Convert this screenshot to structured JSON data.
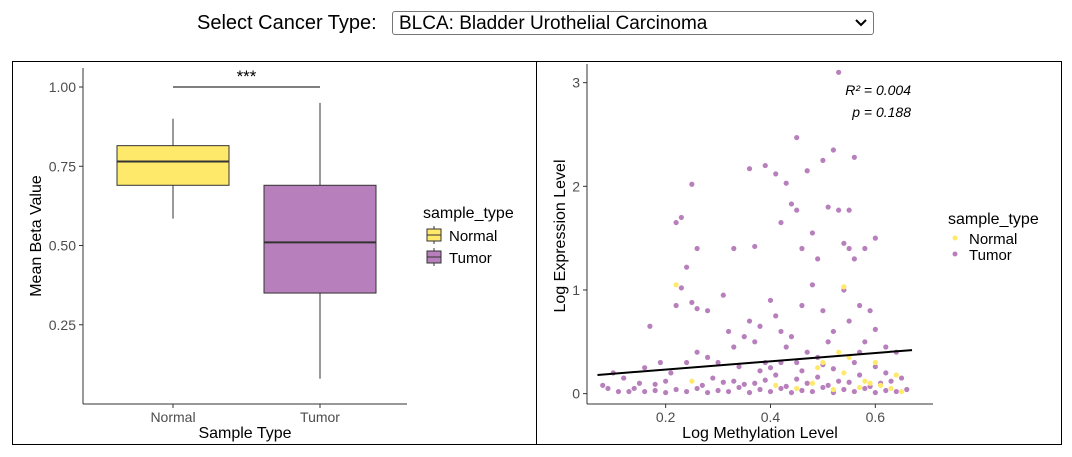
{
  "selector": {
    "label": "Select Cancer Type:",
    "value": "BLCA: Bladder Urothelial Carcinoma"
  },
  "colors": {
    "normal": "#ffe96b",
    "tumor": "#b87fbd",
    "box_outline": "#333333",
    "significance_line": "#000000"
  },
  "chart_data": [
    {
      "type": "box",
      "xlabel": "Sample Type",
      "ylabel": "Mean Beta Value",
      "categories": [
        "Normal",
        "Tumor"
      ],
      "ylim": [
        0.0,
        1.06
      ],
      "yticks": [
        0.25,
        0.5,
        0.75,
        1.0
      ],
      "ytick_labels": [
        "0.25",
        "0.50",
        "0.75",
        "1.00"
      ],
      "boxes": [
        {
          "name": "Normal",
          "min": 0.585,
          "q1": 0.69,
          "median": 0.765,
          "q3": 0.815,
          "max": 0.9
        },
        {
          "name": "Tumor",
          "min": 0.08,
          "q1": 0.35,
          "median": 0.51,
          "q3": 0.69,
          "max": 0.95
        }
      ],
      "significance": {
        "label": "***",
        "y": 1.0
      },
      "legend": {
        "title": "sample_type",
        "entries": [
          "Normal",
          "Tumor"
        ],
        "position": "right"
      }
    },
    {
      "type": "scatter",
      "xlabel": "Log Methylation Level",
      "ylabel": "Log Expression Level",
      "xlim": [
        0.05,
        0.71
      ],
      "ylim": [
        -0.1,
        3.18
      ],
      "xticks": [
        0.2,
        0.4,
        0.6
      ],
      "xtick_labels": [
        "0.2",
        "0.4",
        "0.6"
      ],
      "yticks": [
        0,
        1,
        2,
        3
      ],
      "ytick_labels": [
        "0",
        "1",
        "2",
        "3"
      ],
      "annotation": {
        "r2": "R² = 0.004",
        "p": "p = 0.188"
      },
      "regression": {
        "x": [
          0.07,
          0.67
        ],
        "y": [
          0.18,
          0.42
        ]
      },
      "legend": {
        "title": "sample_type",
        "entries": [
          "Normal",
          "Tumor"
        ],
        "position": "right"
      },
      "series": [
        {
          "name": "Tumor",
          "points": [
            [
              0.53,
              3.1
            ],
            [
              0.45,
              2.47
            ],
            [
              0.52,
              2.35
            ],
            [
              0.39,
              2.2
            ],
            [
              0.43,
              2.03
            ],
            [
              0.25,
              2.02
            ],
            [
              0.41,
              2.12
            ],
            [
              0.36,
              2.17
            ],
            [
              0.5,
              2.25
            ],
            [
              0.56,
              2.28
            ],
            [
              0.47,
              2.15
            ],
            [
              0.53,
              1.77
            ],
            [
              0.51,
              1.8
            ],
            [
              0.23,
              1.7
            ],
            [
              0.44,
              1.83
            ],
            [
              0.45,
              1.77
            ],
            [
              0.55,
              1.77
            ],
            [
              0.42,
              1.65
            ],
            [
              0.6,
              1.5
            ],
            [
              0.55,
              1.4
            ],
            [
              0.56,
              1.3
            ],
            [
              0.22,
              1.65
            ],
            [
              0.26,
              1.4
            ],
            [
              0.48,
              1.55
            ],
            [
              0.46,
              1.4
            ],
            [
              0.58,
              1.4
            ],
            [
              0.54,
              1.45
            ],
            [
              0.33,
              1.4
            ],
            [
              0.37,
              1.42
            ],
            [
              0.49,
              1.3
            ],
            [
              0.24,
              1.22
            ],
            [
              0.23,
              1.02
            ],
            [
              0.22,
              0.85
            ],
            [
              0.25,
              0.88
            ],
            [
              0.26,
              0.82
            ],
            [
              0.28,
              0.8
            ],
            [
              0.31,
              0.95
            ],
            [
              0.32,
              0.6
            ],
            [
              0.33,
              0.45
            ],
            [
              0.36,
              0.7
            ],
            [
              0.38,
              0.65
            ],
            [
              0.4,
              0.9
            ],
            [
              0.41,
              0.75
            ],
            [
              0.42,
              0.6
            ],
            [
              0.44,
              0.55
            ],
            [
              0.46,
              0.85
            ],
            [
              0.48,
              1.05
            ],
            [
              0.5,
              0.8
            ],
            [
              0.52,
              0.6
            ],
            [
              0.54,
              1.0
            ],
            [
              0.55,
              0.7
            ],
            [
              0.57,
              0.85
            ],
            [
              0.58,
              0.5
            ],
            [
              0.6,
              0.62
            ],
            [
              0.62,
              0.45
            ],
            [
              0.64,
              0.4
            ],
            [
              0.59,
              0.8
            ],
            [
              0.57,
              0.4
            ],
            [
              0.51,
              0.5
            ],
            [
              0.49,
              0.35
            ],
            [
              0.47,
              0.4
            ],
            [
              0.45,
              0.3
            ],
            [
              0.43,
              0.45
            ],
            [
              0.39,
              0.3
            ],
            [
              0.37,
              0.5
            ],
            [
              0.35,
              0.55
            ],
            [
              0.3,
              0.3
            ],
            [
              0.28,
              0.35
            ],
            [
              0.26,
              0.4
            ],
            [
              0.24,
              0.3
            ],
            [
              0.21,
              0.2
            ],
            [
              0.19,
              0.3
            ],
            [
              0.17,
              0.65
            ],
            [
              0.16,
              0.25
            ],
            [
              0.15,
              0.1
            ],
            [
              0.12,
              0.15
            ],
            [
              0.1,
              0.2
            ],
            [
              0.09,
              0.05
            ],
            [
              0.08,
              0.08
            ],
            [
              0.11,
              0.02
            ],
            [
              0.13,
              0.02
            ],
            [
              0.14,
              0.05
            ],
            [
              0.16,
              0.02
            ],
            [
              0.18,
              0.03
            ],
            [
              0.2,
              0.01
            ],
            [
              0.22,
              0.04
            ],
            [
              0.24,
              0.02
            ],
            [
              0.26,
              0.05
            ],
            [
              0.28,
              0.01
            ],
            [
              0.3,
              0.03
            ],
            [
              0.32,
              0.02
            ],
            [
              0.34,
              0.06
            ],
            [
              0.36,
              0.01
            ],
            [
              0.38,
              0.04
            ],
            [
              0.4,
              0.02
            ],
            [
              0.42,
              0.05
            ],
            [
              0.44,
              0.01
            ],
            [
              0.46,
              0.03
            ],
            [
              0.48,
              0.02
            ],
            [
              0.5,
              0.06
            ],
            [
              0.52,
              0.01
            ],
            [
              0.54,
              0.04
            ],
            [
              0.56,
              0.02
            ],
            [
              0.58,
              0.05
            ],
            [
              0.6,
              0.01
            ],
            [
              0.62,
              0.03
            ],
            [
              0.64,
              0.02
            ],
            [
              0.66,
              0.04
            ],
            [
              0.29,
              0.15
            ],
            [
              0.33,
              0.12
            ],
            [
              0.37,
              0.1
            ],
            [
              0.41,
              0.18
            ],
            [
              0.45,
              0.14
            ],
            [
              0.49,
              0.16
            ],
            [
              0.53,
              0.12
            ],
            [
              0.57,
              0.18
            ],
            [
              0.61,
              0.1
            ],
            [
              0.65,
              0.15
            ],
            [
              0.27,
              0.08
            ],
            [
              0.31,
              0.11
            ],
            [
              0.35,
              0.09
            ],
            [
              0.39,
              0.13
            ],
            [
              0.43,
              0.07
            ],
            [
              0.47,
              0.1
            ],
            [
              0.51,
              0.08
            ],
            [
              0.55,
              0.11
            ],
            [
              0.59,
              0.07
            ],
            [
              0.63,
              0.12
            ],
            [
              0.2,
              0.12
            ],
            [
              0.18,
              0.09
            ],
            [
              0.4,
              0.25
            ],
            [
              0.42,
              0.3
            ],
            [
              0.46,
              0.22
            ],
            [
              0.5,
              0.28
            ],
            [
              0.52,
              0.24
            ],
            [
              0.56,
              0.3
            ],
            [
              0.6,
              0.26
            ],
            [
              0.62,
              0.2
            ],
            [
              0.38,
              0.22
            ],
            [
              0.34,
              0.26
            ]
          ]
        },
        {
          "name": "Normal",
          "points": [
            [
              0.54,
              1.03
            ],
            [
              0.22,
              1.05
            ],
            [
              0.25,
              0.12
            ],
            [
              0.41,
              0.08
            ],
            [
              0.45,
              0.05
            ],
            [
              0.48,
              0.1
            ],
            [
              0.5,
              0.3
            ],
            [
              0.52,
              0.04
            ],
            [
              0.54,
              0.2
            ],
            [
              0.55,
              0.35
            ],
            [
              0.57,
              0.06
            ],
            [
              0.58,
              0.12
            ],
            [
              0.6,
              0.3
            ],
            [
              0.61,
              0.08
            ],
            [
              0.63,
              0.05
            ],
            [
              0.64,
              0.18
            ],
            [
              0.65,
              0.02
            ],
            [
              0.49,
              0.25
            ],
            [
              0.53,
              0.4
            ],
            [
              0.59,
              0.1
            ]
          ]
        }
      ]
    }
  ]
}
